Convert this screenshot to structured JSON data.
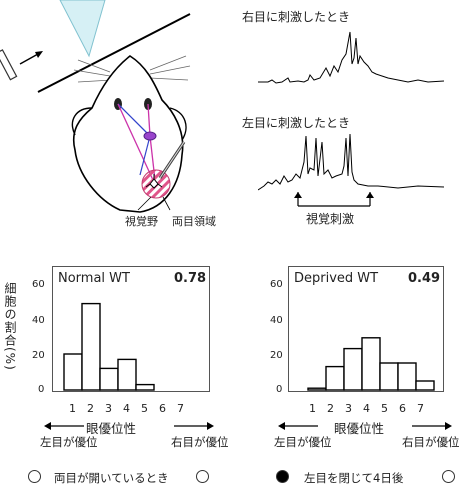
{
  "diagram": {
    "region_labels": {
      "visual_cortex": "視覚野",
      "binocular_zone": "両目領域"
    }
  },
  "traces": {
    "right_eye_label": "右目に刺激したとき",
    "left_eye_label": "左目に刺激したとき",
    "stimulus_label": "視覚刺激"
  },
  "y_axis_label": "細胞の割合(%)",
  "x_axis_label": "眼優位性",
  "left_pref_label": "左目が優位",
  "right_pref_label": "右目が優位",
  "chart_data": [
    {
      "type": "bar",
      "title": "Normal WT",
      "score": "0.78",
      "categories": [
        "1",
        "2",
        "3",
        "4",
        "5",
        "6",
        "7"
      ],
      "values": [
        20,
        48,
        12,
        17,
        3,
        0,
        0
      ],
      "ylim": [
        0,
        60
      ],
      "yticks": [
        "0",
        "20",
        "40",
        "60"
      ],
      "xlabel": "眼優位性",
      "ylabel": "細胞の割合(%)",
      "caption": "両目が開いているとき"
    },
    {
      "type": "bar",
      "title": "Deprived WT",
      "score": "0.49",
      "categories": [
        "1",
        "2",
        "3",
        "4",
        "5",
        "6",
        "7"
      ],
      "values": [
        1,
        13,
        23,
        29,
        15,
        15,
        5
      ],
      "ylim": [
        0,
        60
      ],
      "yticks": [
        "0",
        "20",
        "40",
        "60"
      ],
      "xlabel": "眼優位性",
      "ylabel": "",
      "caption": "左目を閉じて4日後"
    }
  ]
}
